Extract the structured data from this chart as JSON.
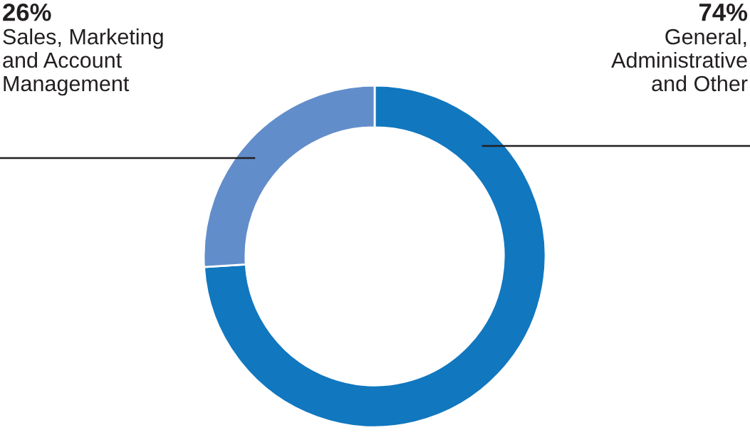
{
  "chart_data": {
    "type": "donut",
    "categories": [
      "General,\nAdministrative\nand Other",
      "Sales, Marketing\nand Account\nManagement"
    ],
    "values": [
      74,
      26
    ],
    "colors": [
      "#1177bf",
      "#628dcb"
    ],
    "value_labels": [
      "74%",
      "26%"
    ]
  }
}
